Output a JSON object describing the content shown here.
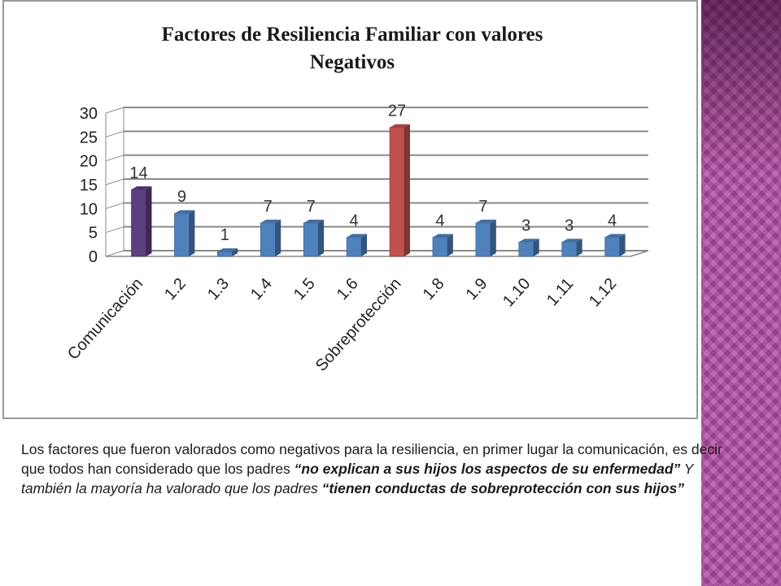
{
  "chart_data": {
    "type": "bar",
    "title_line1": "Factores de Resiliencia Familiar con valores",
    "title_line2": "Negativos",
    "categories": [
      "Comunicación",
      "1.2",
      "1.3",
      "1.4",
      "1.5",
      "1.6",
      "Sobreprotección",
      "1.8",
      "1.9",
      "1.10",
      "1.11",
      "1.12"
    ],
    "values": [
      14,
      9,
      1,
      7,
      7,
      4,
      27,
      4,
      7,
      3,
      3,
      4
    ],
    "y_ticks": [
      "0",
      "5",
      "10",
      "15",
      "20",
      "25",
      "30"
    ],
    "ylim": [
      0,
      30
    ],
    "grid": true,
    "legend": "none",
    "bar_colors": [
      "#5b3f7e",
      "#4f81bd",
      "#4f81bd",
      "#4f81bd",
      "#4f81bd",
      "#4f81bd",
      "#c0504d",
      "#4f81bd",
      "#4f81bd",
      "#4f81bd",
      "#4f81bd",
      "#4f81bd"
    ]
  },
  "caption": {
    "part1": "Los factores que fueron valorados como negativos para la resiliencia, en primer lugar la comunicación, es decir que todos han considerado que los padres ",
    "part2": "“no explican a sus hijos los aspectos de su enfermedad”",
    "part3": " Y también la mayoría ha valorado que los padres ",
    "part4": "“tienen conductas de sobreprotección con sus hijos”"
  },
  "colors": {
    "accent_strip": "#b04aa3",
    "bar_default": "#4f81bd",
    "bar_highlight_1": "#5b3f7e",
    "bar_highlight_2": "#c0504d"
  }
}
